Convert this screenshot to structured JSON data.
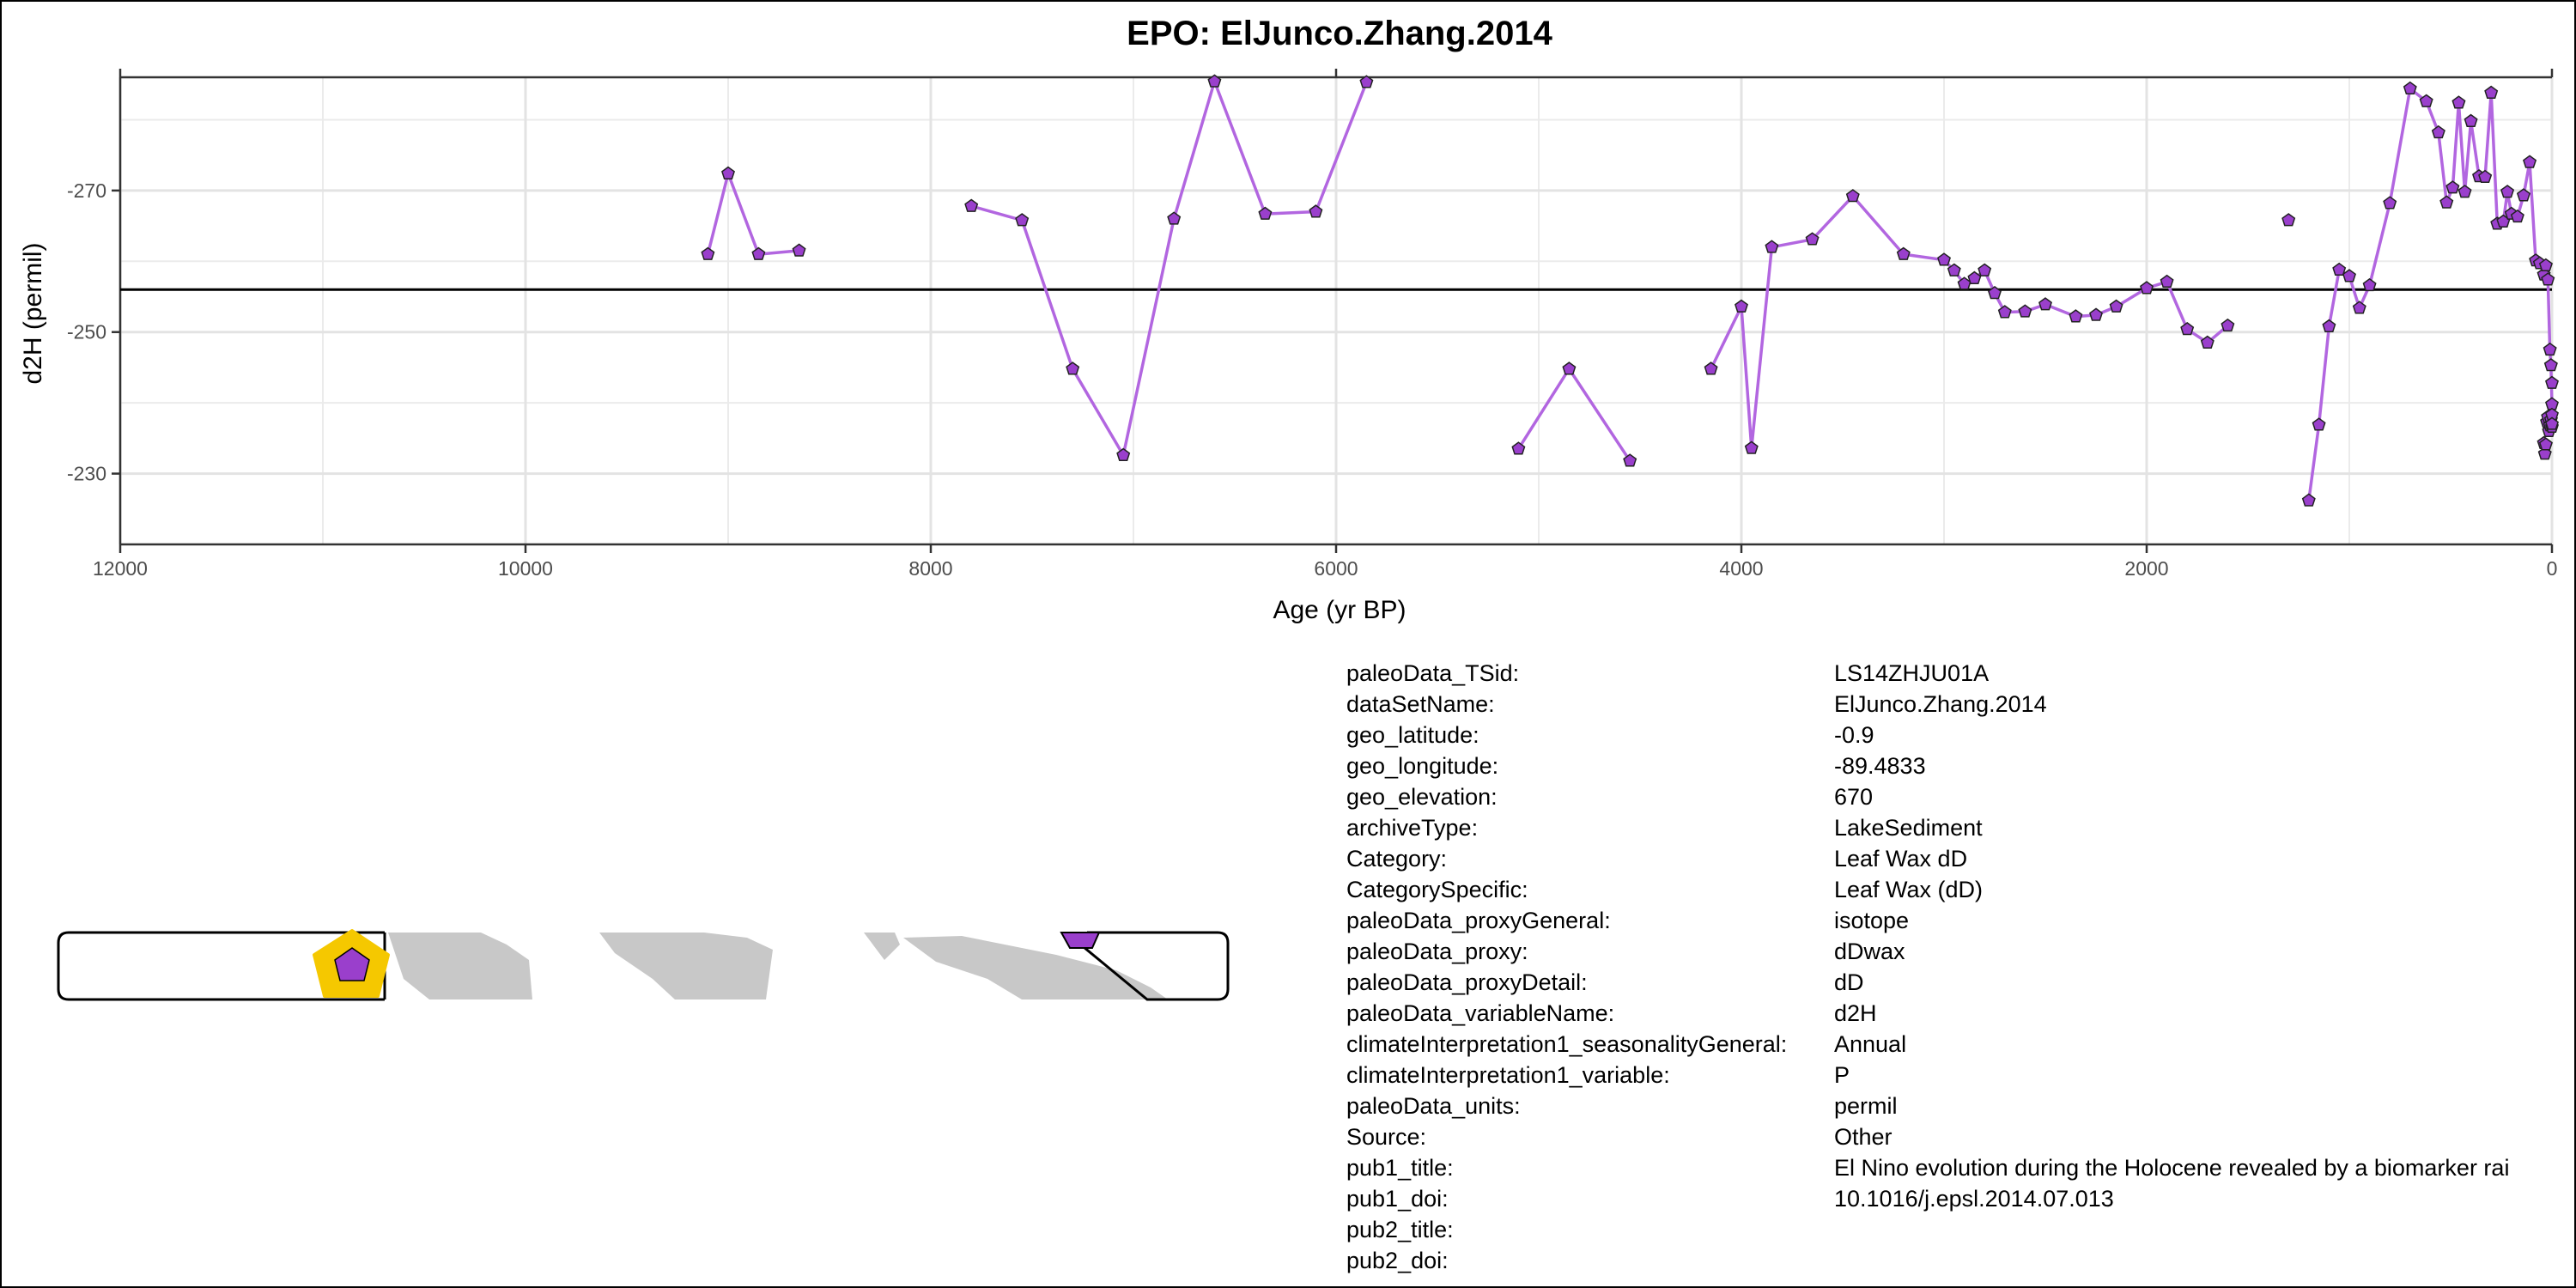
{
  "chart_data": {
    "type": "line",
    "title": "EPO: ElJunco.Zhang.2014",
    "xlabel": "Age (yr BP)",
    "ylabel": "d2H (permil)",
    "xlim": [
      12000,
      0
    ],
    "x_reversed": true,
    "ylim": [
      -220,
      -286
    ],
    "y_reversed": true,
    "x_ticks": [
      12000,
      10000,
      8000,
      6000,
      4000,
      2000,
      0
    ],
    "x_tick_labels": [
      "12000",
      "10000",
      "8000",
      "6000",
      "4000",
      "2000",
      "0"
    ],
    "y_ticks": [
      -270,
      -250,
      -230
    ],
    "y_tick_labels": [
      "-270",
      "-250",
      "-230"
    ],
    "y_minor_ticks": [
      -280,
      -260,
      -240
    ],
    "x_minor_ticks": [
      11000,
      9000,
      7000,
      5000,
      3000,
      1000
    ],
    "reference_line_y": -256,
    "grid": true,
    "line_color": "#b266e0",
    "marker_color": "#9a3fcc",
    "marker": "pentagon",
    "series": [
      {
        "segments": [
          [
            [
              9100,
              -261
            ],
            [
              9000,
              -272.4
            ],
            [
              8850,
              -261
            ],
            [
              8650,
              -261.5
            ]
          ],
          [
            [
              7800,
              -267.8
            ],
            [
              7550,
              -265.8
            ],
            [
              7300,
              -244.8
            ],
            [
              7050,
              -232.6
            ],
            [
              6800,
              -266
            ],
            [
              6600,
              -285.4
            ],
            [
              6350,
              -266.7
            ],
            [
              6100,
              -267
            ],
            [
              5850,
              -285.3
            ]
          ],
          [
            [
              5100,
              -233.5
            ],
            [
              4850,
              -244.8
            ],
            [
              4550,
              -231.8
            ]
          ],
          [
            [
              4150,
              -244.8
            ],
            [
              4000,
              -253.6
            ],
            [
              3950,
              -233.6
            ],
            [
              3850,
              -262
            ],
            [
              3650,
              -263.1
            ],
            [
              3450,
              -269.2
            ],
            [
              3200,
              -261
            ],
            [
              3000,
              -260.2
            ],
            [
              2950,
              -258.7
            ],
            [
              2900,
              -256.8
            ],
            [
              2850,
              -257.6
            ],
            [
              2800,
              -258.7
            ],
            [
              2750,
              -255.5
            ],
            [
              2700,
              -252.8
            ],
            [
              2600,
              -252.9
            ],
            [
              2500,
              -253.9
            ],
            [
              2350,
              -252.2
            ],
            [
              2250,
              -252.4
            ],
            [
              2150,
              -253.6
            ],
            [
              2000,
              -256.2
            ],
            [
              1900,
              -257.1
            ],
            [
              1800,
              -250.4
            ],
            [
              1700,
              -248.5
            ],
            [
              1600,
              -250.9
            ]
          ],
          [
            [
              1200,
              -226.2
            ],
            [
              1150,
              -236.9
            ],
            [
              1100,
              -250.8
            ],
            [
              1050,
              -258.8
            ],
            [
              1000,
              -257.9
            ],
            [
              950,
              -253.4
            ],
            [
              900,
              -256.6
            ],
            [
              800,
              -268.2
            ],
            [
              700,
              -284.4
            ],
            [
              620,
              -282.6
            ],
            [
              560,
              -278.2
            ],
            [
              520,
              -268.3
            ],
            [
              490,
              -270.4
            ],
            [
              460,
              -282.4
            ],
            [
              430,
              -269.8
            ],
            [
              400,
              -279.8
            ],
            [
              360,
              -272
            ],
            [
              330,
              -271.9
            ],
            [
              300,
              -283.8
            ],
            [
              270,
              -265.3
            ],
            [
              240,
              -265.6
            ],
            [
              220,
              -269.8
            ],
            [
              200,
              -266.7
            ],
            [
              170,
              -266.3
            ],
            [
              140,
              -269.3
            ],
            [
              110,
              -274
            ],
            [
              80,
              -260.1
            ],
            [
              60,
              -259.7
            ],
            [
              40,
              -258.1
            ],
            [
              30,
              -259.4
            ],
            [
              20,
              -257.4
            ],
            [
              10,
              -247.5
            ],
            [
              5,
              -245.3
            ],
            [
              0,
              -239.8
            ]
          ]
        ],
        "isolated_points": [
          [
            1300,
            -265.8
          ]
        ],
        "cluster_points": [
          [
            40,
            -234.3
          ],
          [
            35,
            -232.8
          ],
          [
            30,
            -234.1
          ],
          [
            25,
            -237.3
          ],
          [
            20,
            -238
          ],
          [
            15,
            -236
          ],
          [
            10,
            -236.8
          ],
          [
            5,
            -237.6
          ],
          [
            0,
            -242.8
          ],
          [
            0,
            -236.6
          ],
          [
            0,
            -238.3
          ],
          [
            0,
            -237
          ]
        ]
      }
    ]
  },
  "metadata": [
    {
      "key": "paleoData_TSid:",
      "value": "LS14ZHJU01A"
    },
    {
      "key": "dataSetName:",
      "value": "ElJunco.Zhang.2014"
    },
    {
      "key": "geo_latitude:",
      "value": "-0.9"
    },
    {
      "key": "geo_longitude:",
      "value": "-89.4833"
    },
    {
      "key": "geo_elevation:",
      "value": "670"
    },
    {
      "key": "archiveType:",
      "value": "LakeSediment"
    },
    {
      "key": "Category:",
      "value": "Leaf Wax dD"
    },
    {
      "key": "CategorySpecific:",
      "value": "Leaf Wax (dD)"
    },
    {
      "key": "paleoData_proxyGeneral:",
      "value": "isotope"
    },
    {
      "key": "paleoData_proxy:",
      "value": "dDwax"
    },
    {
      "key": "paleoData_proxyDetail:",
      "value": "dD"
    },
    {
      "key": "paleoData_variableName:",
      "value": "d2H"
    },
    {
      "key": "climateInterpretation1_seasonalityGeneral:",
      "value": "Annual"
    },
    {
      "key": "climateInterpretation1_variable:",
      "value": "P"
    },
    {
      "key": "paleoData_units:",
      "value": "permil"
    },
    {
      "key": "Source:",
      "value": "Other"
    },
    {
      "key": "pub1_title:",
      "value": "El Nino evolution during the Holocene revealed by a biomarker rai"
    },
    {
      "key": "pub1_doi:",
      "value": "10.1016/j.epsl.2014.07.013"
    },
    {
      "key": "pub2_title:",
      "value": ""
    },
    {
      "key": "pub2_doi:",
      "value": ""
    }
  ],
  "map": {
    "site_marker_color": "#9a3fcc",
    "site_halo_color": "#f5c800",
    "land_color": "#c8c8c8"
  }
}
